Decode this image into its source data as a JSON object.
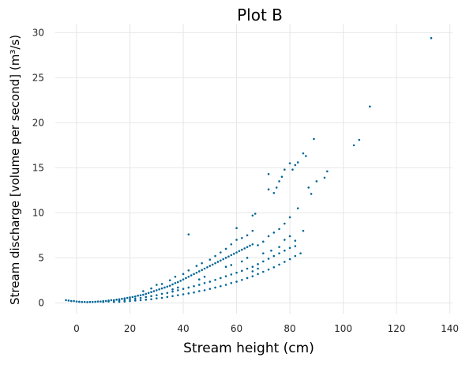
{
  "chart_data": {
    "type": "scatter",
    "title": "Plot B",
    "xlabel": "Stream height (cm)",
    "ylabel": "Stream discharge [volume per second] (m³/s)",
    "xlim": [
      -8,
      141
    ],
    "ylim": [
      -1.2,
      31
    ],
    "x_ticks": [
      0,
      20,
      40,
      60,
      80,
      100,
      120,
      140
    ],
    "y_ticks": [
      0,
      5,
      10,
      15,
      20,
      25,
      30
    ],
    "grid": true,
    "marker_color": "#006699",
    "series": [
      {
        "description": "approximate point cloud (three rating-curve branches plus high-flow outliers)",
        "points": [
          [
            -4,
            0.3
          ],
          [
            -3,
            0.25
          ],
          [
            -2,
            0.2
          ],
          [
            -1,
            0.2
          ],
          [
            0,
            0.15
          ],
          [
            1,
            0.12
          ],
          [
            2,
            0.1
          ],
          [
            3,
            0.1
          ],
          [
            4,
            0.08
          ],
          [
            5,
            0.1
          ],
          [
            6,
            0.1
          ],
          [
            7,
            0.12
          ],
          [
            8,
            0.15
          ],
          [
            9,
            0.15
          ],
          [
            10,
            0.2
          ],
          [
            11,
            0.2
          ],
          [
            12,
            0.25
          ],
          [
            13,
            0.3
          ],
          [
            14,
            0.3
          ],
          [
            15,
            0.35
          ],
          [
            16,
            0.4
          ],
          [
            17,
            0.45
          ],
          [
            18,
            0.5
          ],
          [
            19,
            0.55
          ],
          [
            20,
            0.6
          ],
          [
            21,
            0.65
          ],
          [
            22,
            0.7
          ],
          [
            23,
            0.8
          ],
          [
            24,
            0.85
          ],
          [
            25,
            0.9
          ],
          [
            26,
            1.0
          ],
          [
            27,
            1.1
          ],
          [
            28,
            1.2
          ],
          [
            29,
            1.3
          ],
          [
            30,
            1.4
          ],
          [
            31,
            1.5
          ],
          [
            32,
            1.6
          ],
          [
            33,
            1.7
          ],
          [
            34,
            1.8
          ],
          [
            35,
            1.9
          ],
          [
            36,
            2.05
          ],
          [
            37,
            2.2
          ],
          [
            38,
            2.3
          ],
          [
            39,
            2.45
          ],
          [
            40,
            2.6
          ],
          [
            41,
            2.75
          ],
          [
            42,
            2.9
          ],
          [
            43,
            3.05
          ],
          [
            44,
            3.2
          ],
          [
            45,
            3.35
          ],
          [
            46,
            3.5
          ],
          [
            47,
            3.65
          ],
          [
            48,
            3.8
          ],
          [
            49,
            3.95
          ],
          [
            50,
            4.1
          ],
          [
            51,
            4.25
          ],
          [
            52,
            4.4
          ],
          [
            53,
            4.55
          ],
          [
            54,
            4.7
          ],
          [
            55,
            4.85
          ],
          [
            56,
            5.0
          ],
          [
            57,
            5.15
          ],
          [
            58,
            5.3
          ],
          [
            59,
            5.45
          ],
          [
            60,
            5.6
          ],
          [
            61,
            5.75
          ],
          [
            62,
            5.9
          ],
          [
            63,
            6.05
          ],
          [
            64,
            6.2
          ],
          [
            65,
            6.35
          ],
          [
            66,
            6.5
          ],
          [
            10,
            0.1
          ],
          [
            12,
            0.15
          ],
          [
            14,
            0.2
          ],
          [
            16,
            0.25
          ],
          [
            18,
            0.3
          ],
          [
            20,
            0.4
          ],
          [
            22,
            0.45
          ],
          [
            24,
            0.55
          ],
          [
            26,
            0.65
          ],
          [
            28,
            0.75
          ],
          [
            30,
            0.85
          ],
          [
            32,
            1.0
          ],
          [
            34,
            1.1
          ],
          [
            36,
            1.25
          ],
          [
            38,
            1.4
          ],
          [
            40,
            1.55
          ],
          [
            42,
            1.7
          ],
          [
            44,
            1.85
          ],
          [
            46,
            2.0
          ],
          [
            48,
            2.2
          ],
          [
            50,
            2.35
          ],
          [
            52,
            2.55
          ],
          [
            54,
            2.75
          ],
          [
            56,
            2.95
          ],
          [
            58,
            3.15
          ],
          [
            60,
            3.35
          ],
          [
            62,
            3.55
          ],
          [
            64,
            3.8
          ],
          [
            66,
            4.0
          ],
          [
            68,
            4.3
          ],
          [
            70,
            4.6
          ],
          [
            72,
            4.9
          ],
          [
            74,
            5.2
          ],
          [
            76,
            5.5
          ],
          [
            78,
            5.8
          ],
          [
            80,
            6.1
          ],
          [
            82,
            6.3
          ],
          [
            14,
            0.1
          ],
          [
            16,
            0.12
          ],
          [
            18,
            0.15
          ],
          [
            20,
            0.2
          ],
          [
            22,
            0.25
          ],
          [
            24,
            0.3
          ],
          [
            26,
            0.35
          ],
          [
            28,
            0.4
          ],
          [
            30,
            0.5
          ],
          [
            32,
            0.55
          ],
          [
            34,
            0.65
          ],
          [
            36,
            0.75
          ],
          [
            38,
            0.85
          ],
          [
            40,
            0.95
          ],
          [
            42,
            1.05
          ],
          [
            44,
            1.15
          ],
          [
            46,
            1.3
          ],
          [
            48,
            1.4
          ],
          [
            50,
            1.55
          ],
          [
            52,
            1.7
          ],
          [
            54,
            1.85
          ],
          [
            56,
            2.0
          ],
          [
            58,
            2.2
          ],
          [
            60,
            2.35
          ],
          [
            62,
            2.55
          ],
          [
            64,
            2.75
          ],
          [
            66,
            2.95
          ],
          [
            68,
            3.2
          ],
          [
            70,
            3.45
          ],
          [
            72,
            3.7
          ],
          [
            74,
            3.95
          ],
          [
            76,
            4.25
          ],
          [
            78,
            4.55
          ],
          [
            80,
            4.85
          ],
          [
            82,
            5.2
          ],
          [
            84,
            5.5
          ],
          [
            25,
            1.3
          ],
          [
            28,
            1.6
          ],
          [
            30,
            2.0
          ],
          [
            32,
            2.1
          ],
          [
            35,
            2.5
          ],
          [
            37,
            2.9
          ],
          [
            40,
            3.2
          ],
          [
            42,
            3.6
          ],
          [
            45,
            4.1
          ],
          [
            47,
            4.4
          ],
          [
            50,
            4.8
          ],
          [
            52,
            5.2
          ],
          [
            54,
            5.6
          ],
          [
            56,
            6.0
          ],
          [
            58,
            6.5
          ],
          [
            60,
            7.0
          ],
          [
            62,
            7.2
          ],
          [
            64,
            7.5
          ],
          [
            66,
            8.0
          ],
          [
            42,
            7.6
          ],
          [
            60,
            8.3
          ],
          [
            66,
            9.7
          ],
          [
            67,
            9.9
          ],
          [
            68,
            6.4
          ],
          [
            70,
            6.8
          ],
          [
            72,
            7.4
          ],
          [
            74,
            7.8
          ],
          [
            76,
            8.2
          ],
          [
            78,
            8.8
          ],
          [
            80,
            9.5
          ],
          [
            72,
            12.6
          ],
          [
            72,
            14.3
          ],
          [
            74,
            12.2
          ],
          [
            75,
            12.8
          ],
          [
            76,
            13.5
          ],
          [
            77,
            14.0
          ],
          [
            78,
            14.8
          ],
          [
            80,
            15.5
          ],
          [
            81,
            14.8
          ],
          [
            82,
            15.3
          ],
          [
            83,
            15.6
          ],
          [
            85,
            16.6
          ],
          [
            86,
            16.3
          ],
          [
            87,
            12.8
          ],
          [
            88,
            12.1
          ],
          [
            89,
            18.2
          ],
          [
            90,
            13.5
          ],
          [
            93,
            13.9
          ],
          [
            94,
            14.6
          ],
          [
            83,
            10.5
          ],
          [
            85,
            8.0
          ],
          [
            76,
            6.2
          ],
          [
            78,
            7.0
          ],
          [
            80,
            7.4
          ],
          [
            82,
            6.9
          ],
          [
            73,
            5.8
          ],
          [
            70,
            5.5
          ],
          [
            66,
            3.5
          ],
          [
            68,
            3.8
          ],
          [
            64,
            5.0
          ],
          [
            62,
            4.6
          ],
          [
            58,
            4.2
          ],
          [
            56,
            4.0
          ],
          [
            48,
            2.9
          ],
          [
            46,
            2.6
          ],
          [
            38,
            1.7
          ],
          [
            36,
            1.5
          ],
          [
            104,
            17.5
          ],
          [
            106,
            18.1
          ],
          [
            110,
            21.8
          ],
          [
            133,
            29.4
          ]
        ]
      }
    ]
  }
}
